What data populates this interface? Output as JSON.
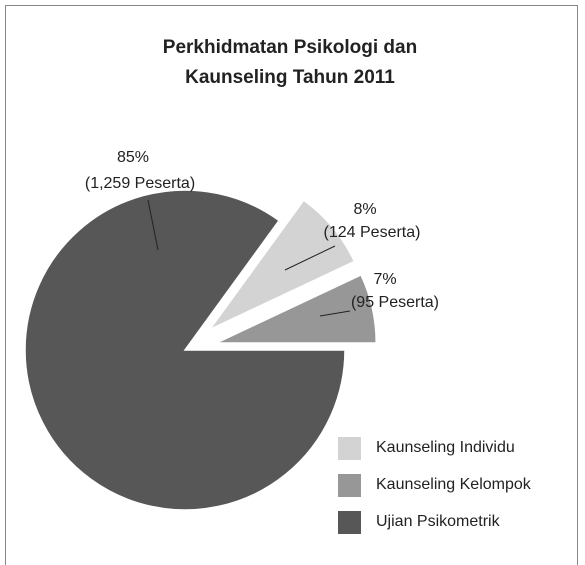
{
  "chart_data": {
    "type": "pie",
    "title": [
      "Perkhidmatan Psikologi dan",
      "Kaunseling Tahun 2011"
    ],
    "categories": [
      "Kaunseling Individu",
      "Kaunseling Kelompok",
      "Ujian Psikometrik"
    ],
    "values": [
      8,
      7,
      85
    ],
    "value_labels": [
      "8%",
      "7%",
      "85%"
    ],
    "count_labels": [
      "(124 Peserta)",
      "(95 Peserta)",
      "(1,259 Peserta)"
    ],
    "colors": [
      "#d3d3d3",
      "#979797",
      "#575757"
    ],
    "legend": "bottom-right"
  }
}
